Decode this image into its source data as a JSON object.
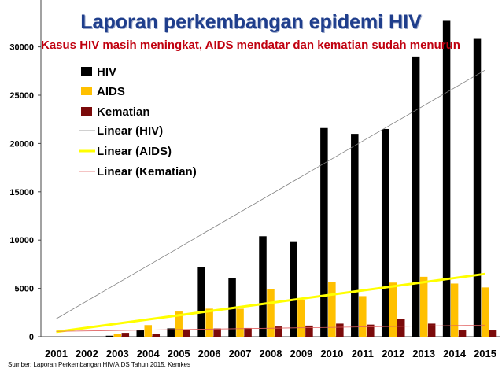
{
  "chart_data": {
    "type": "bar",
    "title": "Laporan perkembangan epidemi HIV",
    "subtitle": "Kasus HIV masih meningkat, AIDS mendatar dan kematian sudah menurun",
    "source": "Sumber: Laporan Perkembangan HIV/AIDS Tahun 2015, Kemkes",
    "categories": [
      "2001",
      "2002",
      "2003",
      "2004",
      "2005",
      "2006",
      "2007",
      "2008",
      "2009",
      "2010",
      "2011",
      "2012",
      "2013",
      "2014",
      "2015"
    ],
    "ylim": [
      0,
      35000
    ],
    "yticks": [
      0,
      5000,
      10000,
      15000,
      20000,
      25000,
      30000
    ],
    "grid": false,
    "legend_position": "top-left",
    "series": [
      {
        "name": "HIV",
        "color": "#000000",
        "values": [
          0,
          0,
          100,
          700,
          860,
          7200,
          6050,
          10400,
          9800,
          21600,
          21000,
          21500,
          29000,
          32700,
          30900
        ]
      },
      {
        "name": "AIDS",
        "color": "#ffc000",
        "values": [
          0,
          0,
          300,
          1200,
          2600,
          2900,
          2900,
          4900,
          3800,
          5700,
          4200,
          5600,
          6200,
          5500,
          5100
        ]
      },
      {
        "name": "Kematian",
        "color": "#7b0a0a",
        "values": [
          0,
          0,
          400,
          300,
          700,
          850,
          900,
          1050,
          1150,
          1350,
          1250,
          1800,
          1350,
          650,
          650
        ]
      }
    ],
    "trendlines": [
      {
        "name": "Linear (HIV)",
        "color": "#808080",
        "from": 1850,
        "to": 27600
      },
      {
        "name": "Linear (AIDS)",
        "color": "#ffff00",
        "from": 500,
        "to": 6500
      },
      {
        "name": "Linear (Kematian)",
        "color": "#e06060",
        "from": 550,
        "to": 1200
      }
    ]
  }
}
